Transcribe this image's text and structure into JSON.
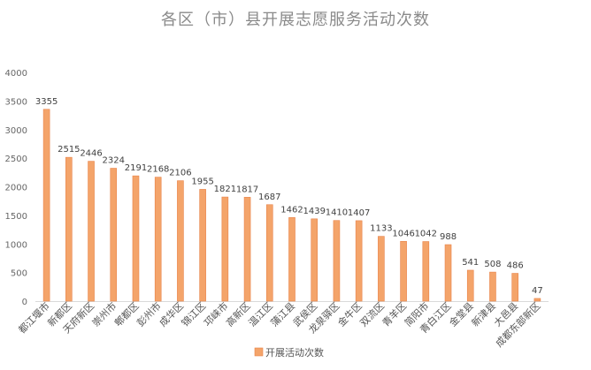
{
  "chart_data": {
    "type": "bar",
    "title": "各区（市）县开展志愿服务活动次数",
    "xlabel": "",
    "ylabel": "",
    "ylim": [
      0,
      4000
    ],
    "yticks": [
      0,
      500,
      1000,
      1500,
      2000,
      2500,
      3000,
      3500,
      4000
    ],
    "grid": false,
    "legend_position": "bottom",
    "categories": [
      "都江堰市",
      "新都区",
      "天府新区",
      "崇州市",
      "郫都区",
      "彭州市",
      "成华区",
      "锦江区",
      "邛崃市",
      "高新区",
      "温江区",
      "蒲江县",
      "武侯区",
      "龙泉驿区",
      "金牛区",
      "双流区",
      "青羊区",
      "简阳市",
      "青白江区",
      "金堂县",
      "新津县",
      "大邑县",
      "成都东部新区"
    ],
    "series": [
      {
        "name": "开展活动次数",
        "color": "#f4a46a",
        "values": [
          3355,
          2515,
          2446,
          2324,
          2191,
          2168,
          2106,
          1955,
          1821,
          1817,
          1687,
          1462,
          1439,
          1410,
          1407,
          1133,
          1046,
          1042,
          988,
          541,
          508,
          486,
          47
        ]
      }
    ]
  }
}
